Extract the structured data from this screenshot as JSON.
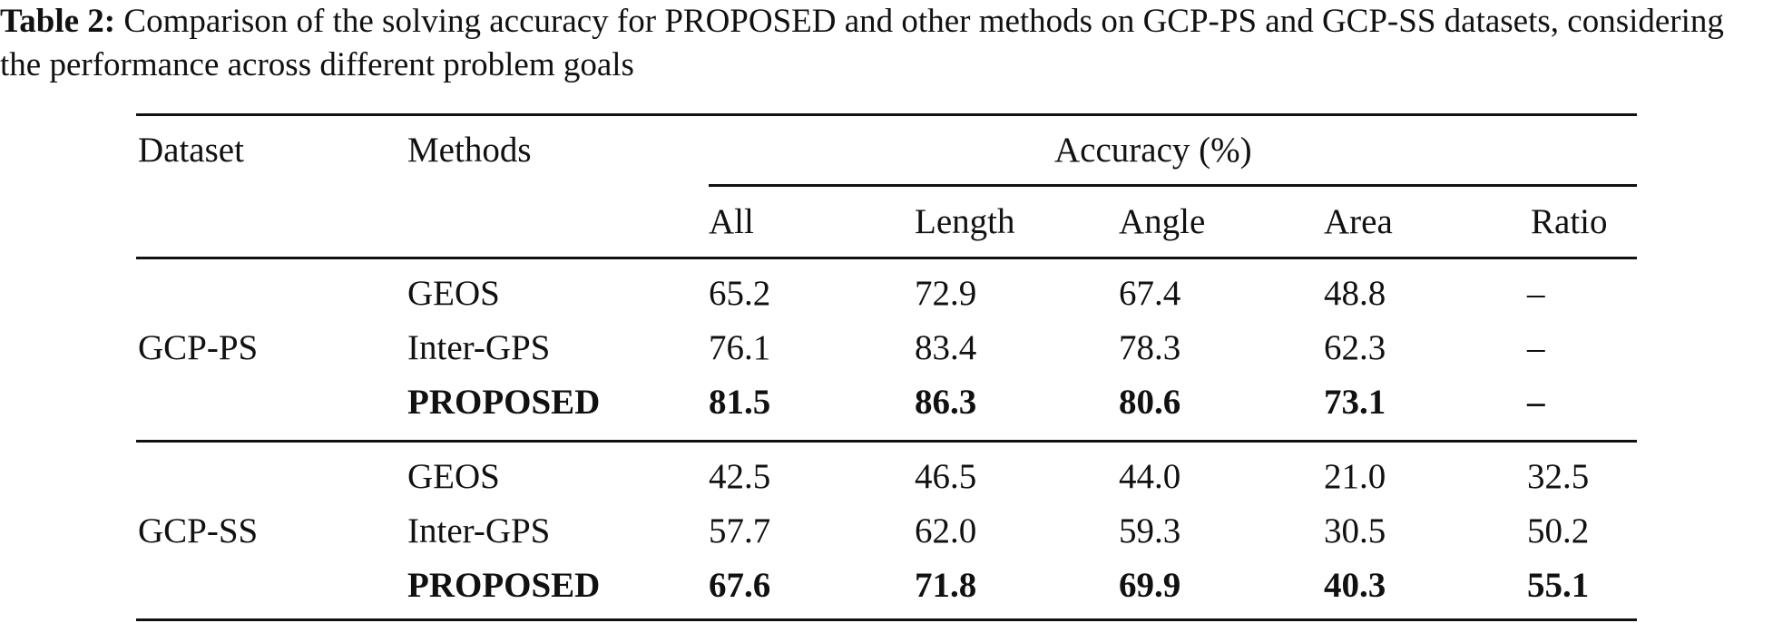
{
  "caption": {
    "label": "Table 2:",
    "text": " Comparison of the solving accuracy for PROPOSED and other methods on GCP-PS and GCP-SS datasets, considering the performance across different problem goals"
  },
  "table": {
    "headers": {
      "dataset": "Dataset",
      "methods": "Methods",
      "group": "Accuracy (%)",
      "columns": [
        "All",
        "Length",
        "Angle",
        "Area",
        "Ratio"
      ]
    },
    "groups": [
      {
        "dataset": "GCP-PS",
        "rows": [
          {
            "method": "GEOS",
            "values": [
              "65.2",
              "72.9",
              "67.4",
              "48.8",
              "–"
            ],
            "bold": false
          },
          {
            "method": "Inter-GPS",
            "values": [
              "76.1",
              "83.4",
              "78.3",
              "62.3",
              "–"
            ],
            "bold": false
          },
          {
            "method": "PROPOSED",
            "values": [
              "81.5",
              "86.3",
              "80.6",
              "73.1",
              "–"
            ],
            "bold": true
          }
        ]
      },
      {
        "dataset": "GCP-SS",
        "rows": [
          {
            "method": "GEOS",
            "values": [
              "42.5",
              "46.5",
              "44.0",
              "21.0",
              "32.5"
            ],
            "bold": false
          },
          {
            "method": "Inter-GPS",
            "values": [
              "57.7",
              "62.0",
              "59.3",
              "30.5",
              "50.2"
            ],
            "bold": false
          },
          {
            "method": "PROPOSED",
            "values": [
              "67.6",
              "71.8",
              "69.9",
              "40.3",
              "55.1"
            ],
            "bold": true
          }
        ]
      }
    ]
  }
}
